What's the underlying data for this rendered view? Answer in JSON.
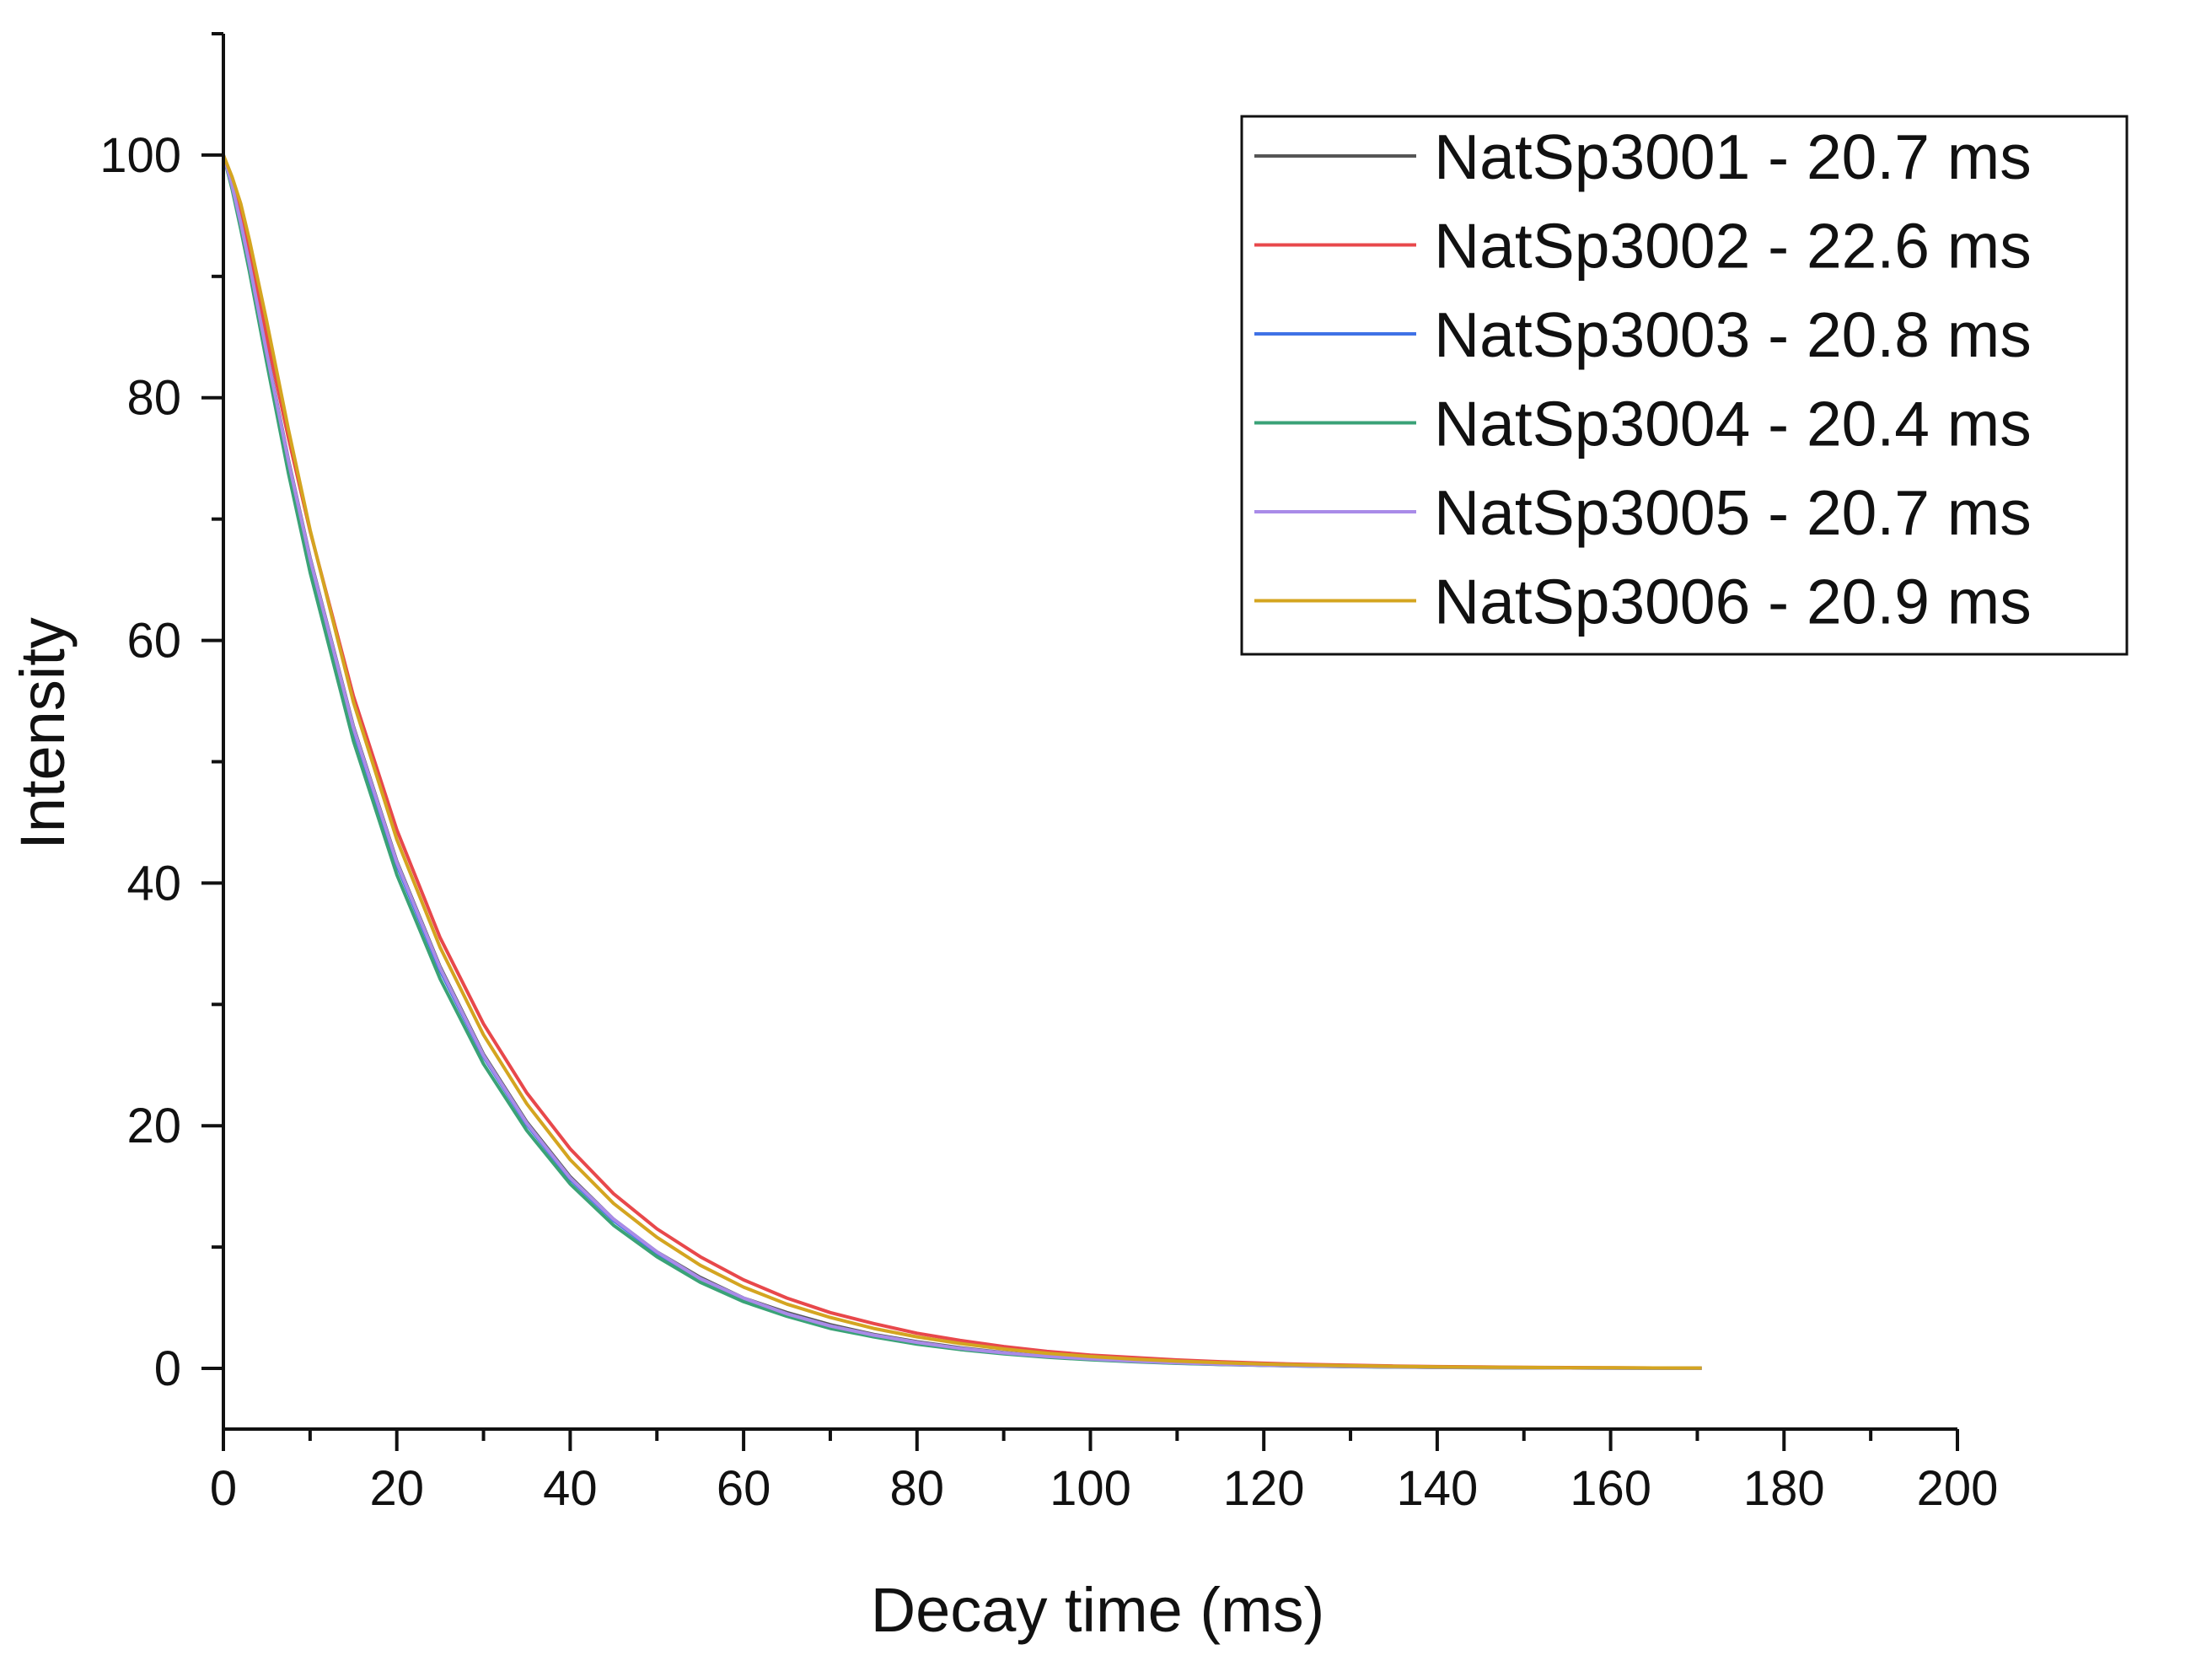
{
  "chart_data": {
    "type": "line",
    "title": "",
    "xlabel": "Decay time (ms)",
    "ylabel": "Intensity",
    "xlim": [
      0,
      200
    ],
    "ylim": [
      -5,
      110
    ],
    "x_ticks": [
      0,
      20,
      40,
      60,
      80,
      100,
      120,
      140,
      160,
      180,
      200
    ],
    "x_tick_labels": [
      "0",
      "20",
      "40",
      "60",
      "80",
      "100",
      "120",
      "140",
      "160",
      "180",
      "200"
    ],
    "y_ticks": [
      0,
      20,
      40,
      60,
      80,
      100
    ],
    "y_tick_labels": [
      "0",
      "20",
      "40",
      "60",
      "80",
      "100"
    ],
    "grid": false,
    "legend_position": "top-right",
    "x": [
      0,
      1,
      2,
      3,
      5,
      7.5,
      10,
      15,
      20,
      25,
      30,
      35,
      40,
      45,
      50,
      55,
      60,
      65,
      70,
      75,
      80,
      85,
      90,
      95,
      100,
      105,
      110,
      115,
      120,
      125,
      130,
      135,
      140,
      145,
      150,
      155,
      160,
      165,
      170.5
    ],
    "series": [
      {
        "name": "NatSp3001 - 20.7 ms",
        "color": "#555555",
        "values": [
          100,
          97.5,
          94.5,
          91.0,
          83.8,
          74.9,
          66.8,
          52.9,
          41.8,
          33.1,
          25.9,
          20.3,
          15.8,
          12.3,
          9.6,
          7.5,
          5.8,
          4.6,
          3.6,
          2.8,
          2.2,
          1.7,
          1.3,
          1.0,
          0.8,
          0.6,
          0.45,
          0.35,
          0.27,
          0.21,
          0.16,
          0.12,
          0.09,
          0.07,
          0.05,
          0.04,
          0.03,
          0.02,
          0.01
        ]
      },
      {
        "name": "NatSp3002 - 22.6 ms",
        "color": "#e8484b",
        "values": [
          100,
          97.8,
          95.0,
          91.9,
          85.0,
          76.7,
          69.0,
          55.4,
          44.4,
          35.5,
          28.4,
          22.7,
          18.1,
          14.4,
          11.5,
          9.2,
          7.3,
          5.8,
          4.6,
          3.7,
          2.9,
          2.3,
          1.8,
          1.4,
          1.1,
          0.9,
          0.7,
          0.55,
          0.43,
          0.33,
          0.26,
          0.2,
          0.15,
          0.12,
          0.09,
          0.07,
          0.05,
          0.04,
          0.03
        ]
      },
      {
        "name": "NatSp3003 - 20.8 ms",
        "color": "#3f72e6",
        "values": [
          100,
          97.4,
          94.3,
          90.9,
          83.6,
          74.6,
          66.4,
          52.6,
          41.5,
          32.8,
          25.7,
          20.1,
          15.6,
          12.2,
          9.5,
          7.4,
          5.7,
          4.5,
          3.5,
          2.7,
          2.1,
          1.6,
          1.25,
          0.97,
          0.75,
          0.58,
          0.44,
          0.34,
          0.26,
          0.2,
          0.15,
          0.12,
          0.09,
          0.07,
          0.05,
          0.04,
          0.03,
          0.02,
          0.01
        ]
      },
      {
        "name": "NatSp3004 - 20.4 ms",
        "color": "#3aa277",
        "values": [
          100,
          97.2,
          93.9,
          90.4,
          82.9,
          73.8,
          65.6,
          51.7,
          40.7,
          32.1,
          25.1,
          19.6,
          15.2,
          11.8,
          9.2,
          7.1,
          5.5,
          4.3,
          3.3,
          2.6,
          2.0,
          1.55,
          1.2,
          0.92,
          0.71,
          0.55,
          0.42,
          0.32,
          0.25,
          0.19,
          0.14,
          0.11,
          0.08,
          0.06,
          0.05,
          0.04,
          0.03,
          0.02,
          0.01
        ]
      },
      {
        "name": "NatSp3005 - 20.7 ms",
        "color": "#a98be8",
        "values": [
          100,
          97.5,
          94.4,
          91.0,
          83.7,
          74.8,
          66.7,
          52.8,
          41.7,
          33.0,
          25.8,
          20.2,
          15.7,
          12.3,
          9.6,
          7.4,
          5.8,
          4.5,
          3.5,
          2.75,
          2.15,
          1.65,
          1.28,
          1.0,
          0.78,
          0.6,
          0.46,
          0.35,
          0.27,
          0.21,
          0.16,
          0.12,
          0.09,
          0.07,
          0.05,
          0.04,
          0.03,
          0.02,
          0.01
        ]
      },
      {
        "name": "NatSp3006 - 20.9 ms",
        "color": "#d4a520",
        "values": [
          100,
          98.2,
          96.0,
          93.0,
          86.3,
          77.4,
          69.1,
          54.9,
          43.6,
          34.7,
          27.5,
          21.8,
          17.2,
          13.6,
          10.8,
          8.5,
          6.7,
          5.3,
          4.2,
          3.3,
          2.6,
          2.05,
          1.6,
          1.25,
          0.98,
          0.77,
          0.6,
          0.47,
          0.36,
          0.28,
          0.22,
          0.17,
          0.13,
          0.1,
          0.08,
          0.06,
          0.05,
          0.04,
          0.03
        ]
      }
    ]
  }
}
